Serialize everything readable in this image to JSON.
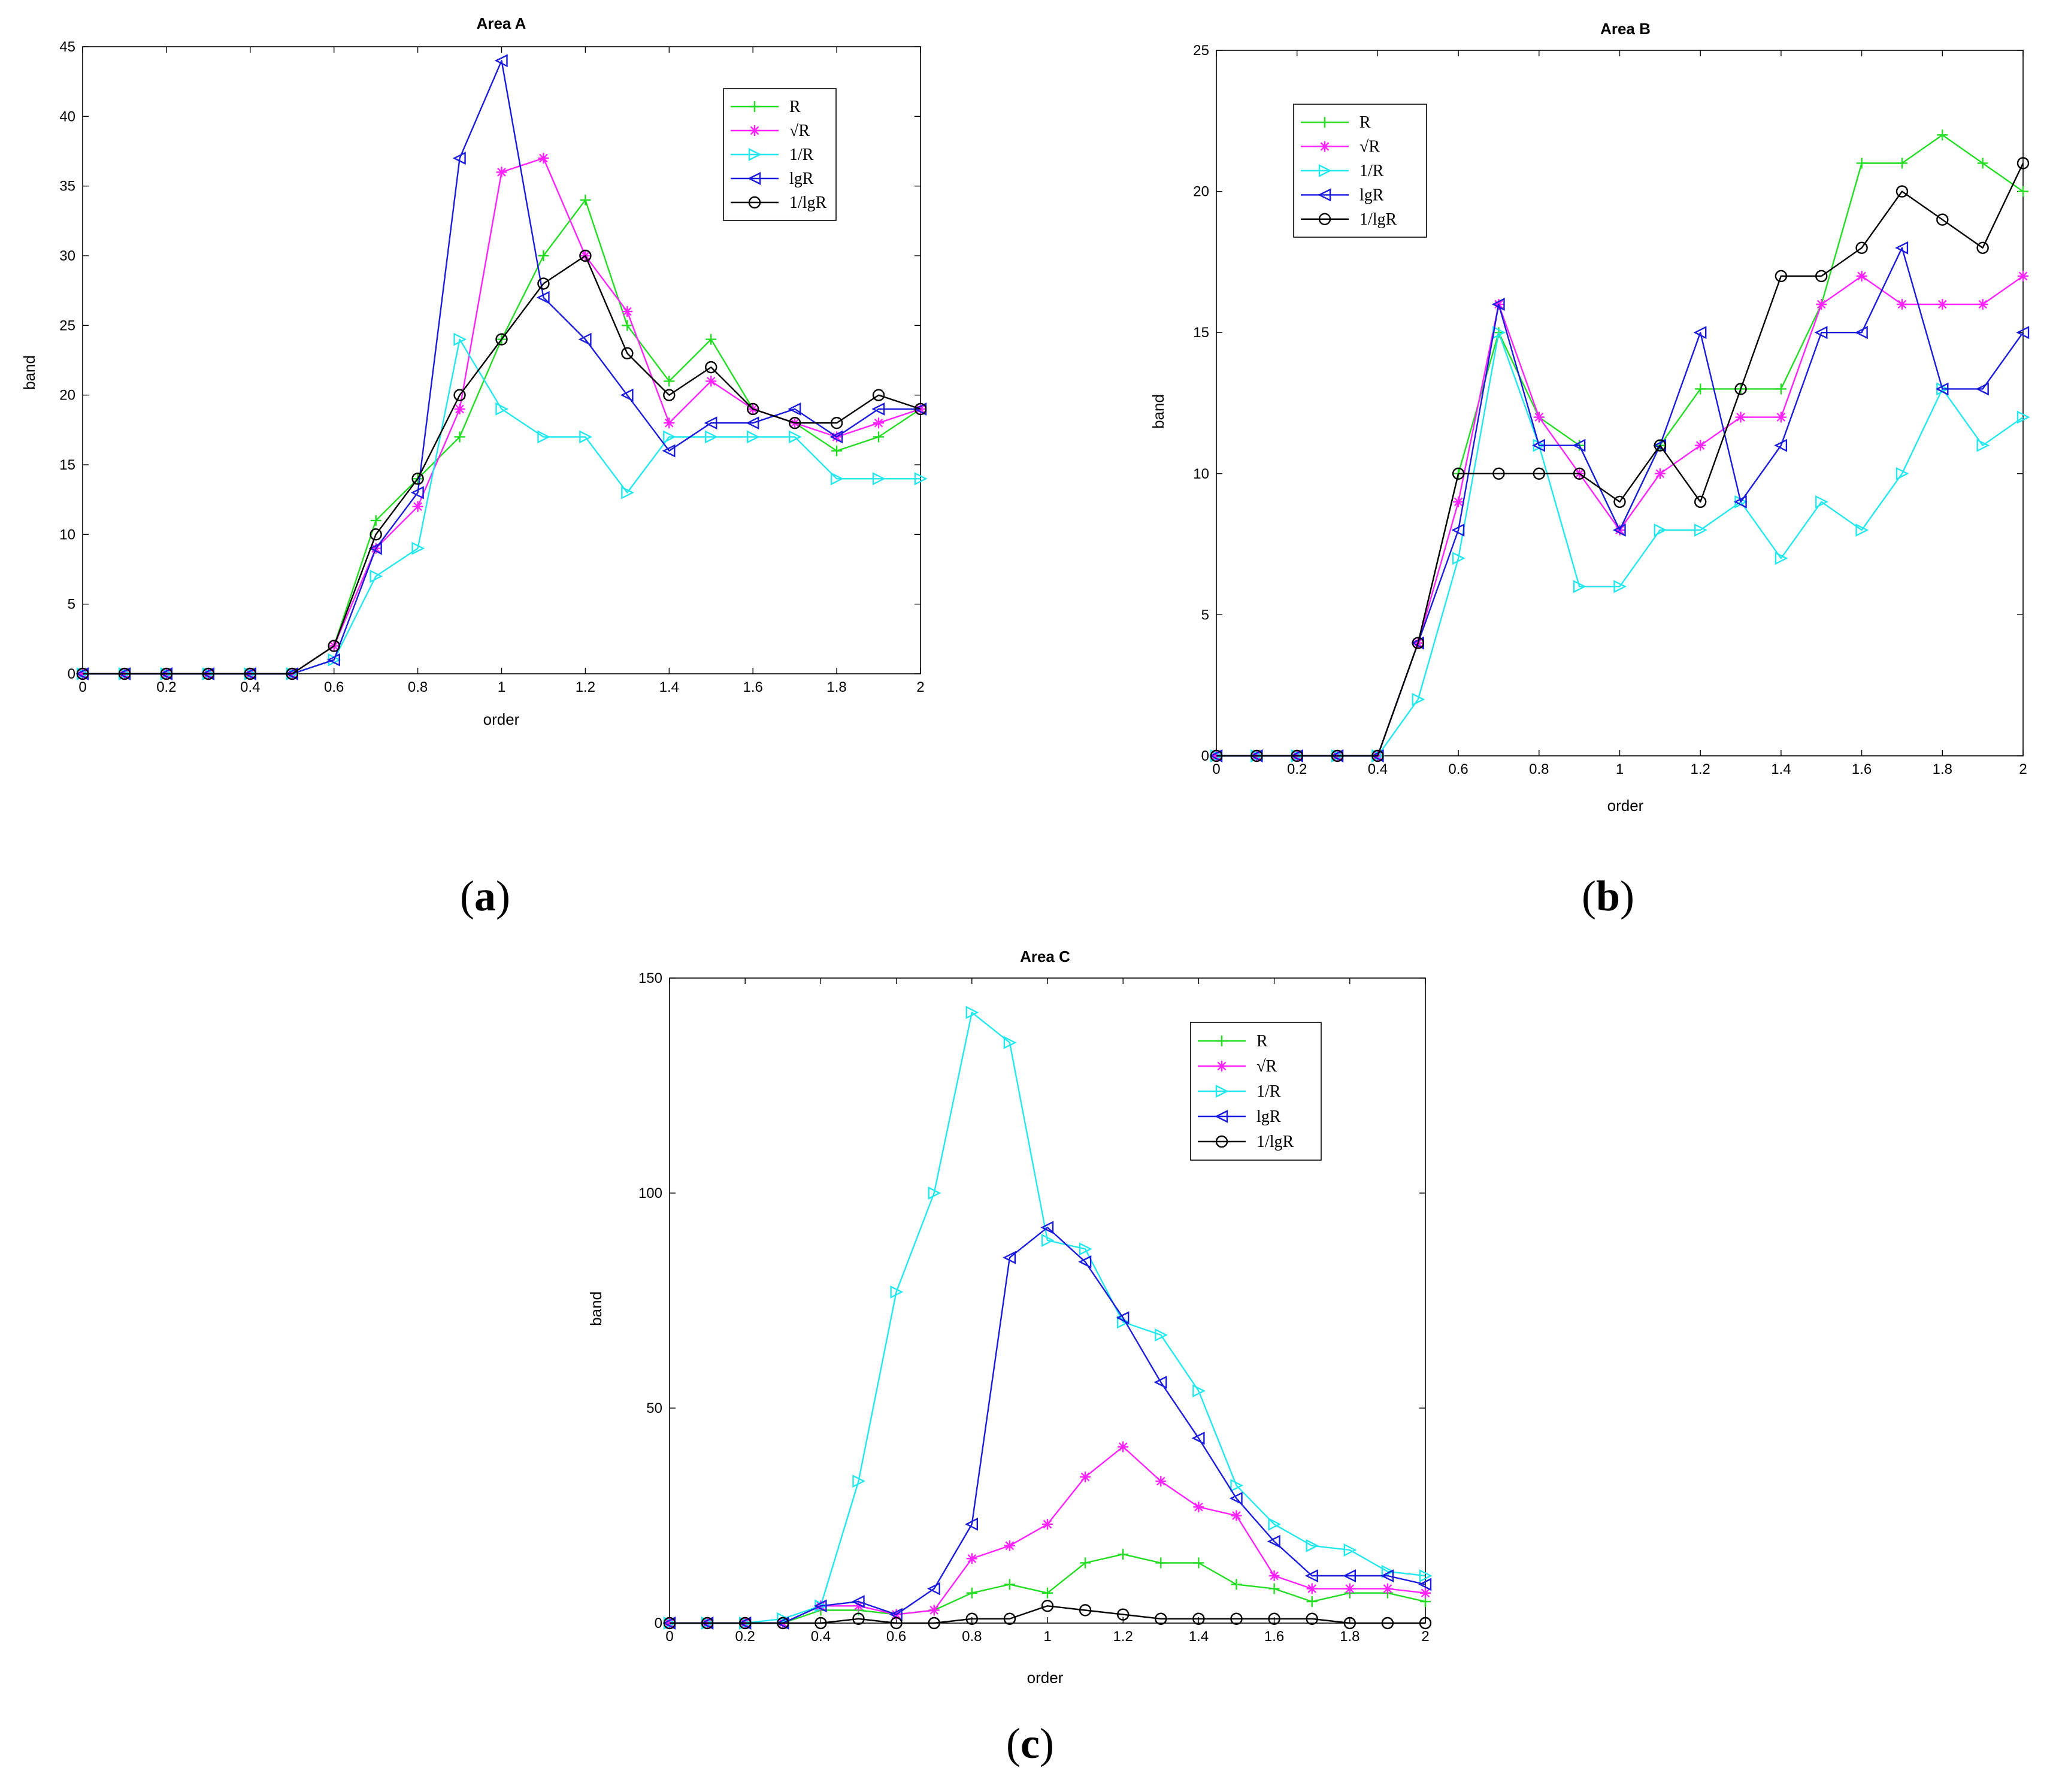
{
  "figure": {
    "panel_labels": [
      {
        "open": "(",
        "letter": "a",
        "close": ")"
      },
      {
        "open": "(",
        "letter": "b",
        "close": ")"
      },
      {
        "open": "(",
        "letter": "c",
        "close": ")"
      }
    ]
  },
  "series_styles": [
    {
      "name": "R",
      "color": "#22dd22",
      "marker": "plus"
    },
    {
      "name": "√R",
      "color": "#ff22ff",
      "marker": "star"
    },
    {
      "name": "1/R",
      "color": "#22e8ee",
      "marker": "triangle-right"
    },
    {
      "name": "lgR",
      "color": "#1a1adf",
      "marker": "triangle-left"
    },
    {
      "name": "1/lgR",
      "color": "#000000",
      "marker": "circle"
    }
  ],
  "chart_data": [
    {
      "type": "line",
      "title": "Area A",
      "xlabel": "order",
      "ylabel": "band",
      "xlim": [
        0,
        2
      ],
      "ylim": [
        0,
        45
      ],
      "xticks": [
        "0",
        "0.2",
        "0.4",
        "0.6",
        "0.8",
        "1",
        "1.2",
        "1.4",
        "1.6",
        "1.8",
        "2"
      ],
      "yticks": [
        "0",
        "5",
        "10",
        "15",
        "20",
        "25",
        "30",
        "35",
        "40",
        "45"
      ],
      "legend_position": "top-right",
      "x": [
        0,
        0.1,
        0.2,
        0.3,
        0.4,
        0.5,
        0.6,
        0.7,
        0.8,
        0.9,
        1.0,
        1.1,
        1.2,
        1.3,
        1.4,
        1.5,
        1.6,
        1.7,
        1.8,
        1.9,
        2.0
      ],
      "series": [
        {
          "name": "R",
          "values": [
            0,
            0,
            0,
            0,
            0,
            0,
            2,
            11,
            14,
            17,
            24,
            30,
            34,
            25,
            21,
            24,
            19,
            18,
            16,
            17,
            19
          ]
        },
        {
          "name": "√R",
          "values": [
            0,
            0,
            0,
            0,
            0,
            0,
            2,
            9,
            12,
            19,
            36,
            37,
            30,
            26,
            18,
            21,
            19,
            18,
            17,
            18,
            19
          ]
        },
        {
          "name": "1/R",
          "values": [
            0,
            0,
            0,
            0,
            0,
            0,
            1,
            7,
            9,
            24,
            19,
            17,
            17,
            13,
            17,
            17,
            17,
            17,
            14,
            14,
            14
          ]
        },
        {
          "name": "lgR",
          "values": [
            0,
            0,
            0,
            0,
            0,
            0,
            1,
            9,
            13,
            37,
            44,
            27,
            24,
            20,
            16,
            18,
            18,
            19,
            17,
            19,
            19
          ]
        },
        {
          "name": "1/lgR",
          "values": [
            0,
            0,
            0,
            0,
            0,
            0,
            2,
            10,
            14,
            20,
            24,
            28,
            30,
            23,
            20,
            22,
            19,
            18,
            18,
            20,
            19
          ]
        }
      ]
    },
    {
      "type": "line",
      "title": "Area B",
      "xlabel": "order",
      "ylabel": "band",
      "xlim": [
        0,
        2
      ],
      "ylim": [
        0,
        25
      ],
      "xticks": [
        "0",
        "0.2",
        "0.4",
        "0.6",
        "0.8",
        "1",
        "1.2",
        "1.4",
        "1.6",
        "1.8",
        "2"
      ],
      "yticks": [
        "0",
        "5",
        "10",
        "15",
        "20",
        "25"
      ],
      "legend_position": "top-left",
      "x": [
        0,
        0.1,
        0.2,
        0.3,
        0.4,
        0.5,
        0.6,
        0.7,
        0.8,
        0.9,
        1.0,
        1.1,
        1.2,
        1.3,
        1.4,
        1.5,
        1.6,
        1.7,
        1.8,
        1.9,
        2.0
      ],
      "series": [
        {
          "name": "R",
          "values": [
            0,
            0,
            0,
            0,
            0,
            4,
            10,
            15,
            12,
            11,
            8,
            11,
            13,
            13,
            13,
            16,
            21,
            21,
            22,
            21,
            20
          ]
        },
        {
          "name": "√R",
          "values": [
            0,
            0,
            0,
            0,
            0,
            4,
            9,
            16,
            12,
            10,
            8,
            10,
            11,
            12,
            12,
            16,
            17,
            16,
            16,
            16,
            17
          ]
        },
        {
          "name": "1/R",
          "values": [
            0,
            0,
            0,
            0,
            0,
            2,
            7,
            15,
            11,
            6,
            6,
            8,
            8,
            9,
            7,
            9,
            8,
            10,
            13,
            11,
            12
          ]
        },
        {
          "name": "lgR",
          "values": [
            0,
            0,
            0,
            0,
            0,
            4,
            8,
            16,
            11,
            11,
            8,
            11,
            15,
            9,
            11,
            15,
            15,
            18,
            13,
            13,
            15
          ]
        },
        {
          "name": "1/lgR",
          "values": [
            0,
            0,
            0,
            0,
            0,
            4,
            10,
            10,
            10,
            10,
            9,
            11,
            9,
            13,
            17,
            17,
            18,
            20,
            19,
            18,
            21
          ]
        }
      ]
    },
    {
      "type": "line",
      "title": "Area C",
      "xlabel": "order",
      "ylabel": "band",
      "xlim": [
        0,
        2
      ],
      "ylim": [
        0,
        150
      ],
      "xticks": [
        "0",
        "0.2",
        "0.4",
        "0.6",
        "0.8",
        "1",
        "1.2",
        "1.4",
        "1.6",
        "1.8",
        "2"
      ],
      "yticks": [
        "0",
        "50",
        "100",
        "150"
      ],
      "legend_position": "top-right",
      "x": [
        0,
        0.1,
        0.2,
        0.3,
        0.4,
        0.5,
        0.6,
        0.7,
        0.8,
        0.9,
        1.0,
        1.1,
        1.2,
        1.3,
        1.4,
        1.5,
        1.6,
        1.7,
        1.8,
        1.9,
        2.0
      ],
      "series": [
        {
          "name": "R",
          "values": [
            0,
            0,
            0,
            0,
            3,
            3,
            2,
            3,
            7,
            9,
            7,
            14,
            16,
            14,
            14,
            9,
            8,
            5,
            7,
            7,
            5
          ]
        },
        {
          "name": "√R",
          "values": [
            0,
            0,
            0,
            0,
            4,
            4,
            2,
            3,
            15,
            18,
            23,
            34,
            41,
            33,
            27,
            25,
            11,
            8,
            8,
            8,
            7
          ]
        },
        {
          "name": "1/R",
          "values": [
            0,
            0,
            0,
            1,
            4,
            33,
            77,
            100,
            142,
            135,
            89,
            87,
            70,
            67,
            54,
            32,
            23,
            18,
            17,
            12,
            11
          ]
        },
        {
          "name": "lgR",
          "values": [
            0,
            0,
            0,
            0,
            4,
            5,
            2,
            8,
            23,
            85,
            92,
            84,
            71,
            56,
            43,
            29,
            19,
            11,
            11,
            11,
            9
          ]
        },
        {
          "name": "1/lgR",
          "values": [
            0,
            0,
            0,
            0,
            0,
            1,
            0,
            0,
            1,
            1,
            4,
            3,
            2,
            1,
            1,
            1,
            1,
            1,
            0,
            0,
            0
          ]
        }
      ]
    }
  ]
}
